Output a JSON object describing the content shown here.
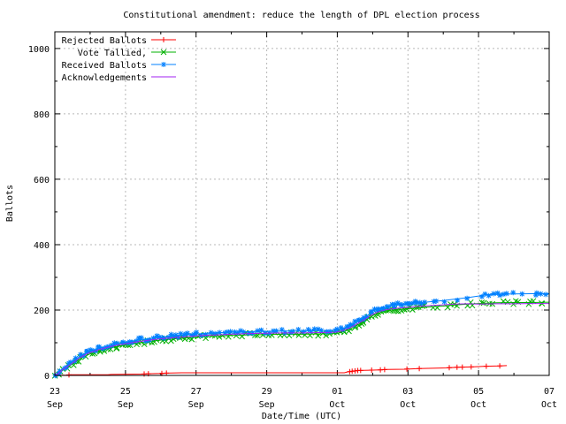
{
  "figure": {
    "background": "#ffffff",
    "border_color": "#000000",
    "grid_color": "#b8b8b8"
  },
  "chart_data": {
    "type": "line",
    "title": "Constitutional amendment: reduce the length of DPL election process",
    "xlabel": "Date/Time (UTC)",
    "ylabel": "Ballots",
    "grid": true,
    "legend_position": "top-left",
    "x_axis": {
      "unit": "days since 23 Sep 00:00 UTC",
      "min": 0,
      "max": 14,
      "major_tick_days": [
        0,
        2,
        4,
        6,
        8,
        10,
        12,
        14
      ],
      "major_tick_labels": [
        [
          "23",
          "Sep"
        ],
        [
          "25",
          "Sep"
        ],
        [
          "27",
          "Sep"
        ],
        [
          "29",
          "Sep"
        ],
        [
          "01",
          "Oct"
        ],
        [
          "03",
          "Oct"
        ],
        [
          "05",
          "Oct"
        ],
        [
          "07",
          "Oct"
        ]
      ],
      "minor_tick_days": [
        1,
        3,
        5,
        7,
        9,
        11,
        13
      ]
    },
    "y_axis": {
      "min": 0,
      "max": 1051,
      "major_ticks": [
        0,
        200,
        400,
        600,
        800,
        1000
      ],
      "minor_ticks": [
        100,
        300,
        500,
        700,
        900
      ]
    },
    "series": [
      {
        "name": "Rejected Ballots",
        "color": "#ff0000",
        "marker": "plus",
        "marker_style": "explicit",
        "points": [
          [
            0,
            0
          ],
          [
            0.35,
            1
          ],
          [
            0.45,
            2
          ],
          [
            1.5,
            2
          ],
          [
            1.6,
            3
          ],
          [
            2.5,
            4
          ],
          [
            2.65,
            5
          ],
          [
            3.0,
            6
          ],
          [
            3.15,
            7
          ],
          [
            3.6,
            8
          ],
          [
            8.2,
            8
          ],
          [
            8.3,
            11
          ],
          [
            8.45,
            13
          ],
          [
            8.6,
            15
          ],
          [
            8.9,
            16
          ],
          [
            9.2,
            17
          ],
          [
            9.4,
            18
          ],
          [
            9.9,
            19
          ],
          [
            10.3,
            21
          ],
          [
            11.1,
            23
          ],
          [
            11.4,
            25
          ],
          [
            11.8,
            26
          ],
          [
            12.2,
            28
          ],
          [
            12.6,
            29
          ],
          [
            12.8,
            30
          ]
        ],
        "marker_days": [
          0.4,
          2.53,
          2.65,
          3.03,
          3.16,
          8.35,
          8.42,
          8.5,
          8.58,
          8.66,
          8.97,
          9.22,
          9.34,
          9.97,
          10.32,
          11.17,
          11.39,
          11.54,
          11.79,
          12.22,
          12.6
        ]
      },
      {
        "name": "Vote Tallied,",
        "color": "#00b000",
        "marker": "cross",
        "marker_style": "dense",
        "points": [
          [
            0,
            0
          ],
          [
            0.1,
            5
          ],
          [
            0.2,
            14
          ],
          [
            0.35,
            24
          ],
          [
            0.5,
            35
          ],
          [
            0.65,
            46
          ],
          [
            0.8,
            56
          ],
          [
            1.0,
            66
          ],
          [
            1.25,
            75
          ],
          [
            1.5,
            82
          ],
          [
            1.75,
            88
          ],
          [
            2.0,
            93
          ],
          [
            2.35,
            99
          ],
          [
            2.7,
            104
          ],
          [
            3.0,
            108
          ],
          [
            3.4,
            112
          ],
          [
            3.8,
            115
          ],
          [
            4.2,
            118
          ],
          [
            4.6,
            120
          ],
          [
            5.0,
            122
          ],
          [
            5.5,
            124
          ],
          [
            6.0,
            125
          ],
          [
            6.5,
            126
          ],
          [
            7.0,
            126
          ],
          [
            7.5,
            127
          ],
          [
            7.95,
            128
          ],
          [
            8.1,
            131
          ],
          [
            8.25,
            137
          ],
          [
            8.4,
            144
          ],
          [
            8.6,
            156
          ],
          [
            8.8,
            169
          ],
          [
            9.0,
            183
          ],
          [
            9.15,
            190
          ],
          [
            9.3,
            195
          ],
          [
            9.5,
            199
          ],
          [
            9.75,
            202
          ],
          [
            10.0,
            204
          ],
          [
            10.3,
            207
          ],
          [
            10.7,
            210
          ],
          [
            11.0,
            212
          ],
          [
            11.3,
            215
          ],
          [
            11.7,
            218
          ],
          [
            12.0,
            220
          ],
          [
            12.5,
            222
          ],
          [
            13.0,
            223
          ],
          [
            13.5,
            223
          ],
          [
            14.0,
            224
          ]
        ]
      },
      {
        "name": "Received Ballots",
        "color": "#0080ff",
        "marker": "asterisk",
        "marker_style": "dense",
        "points": [
          [
            0,
            0
          ],
          [
            0.1,
            8
          ],
          [
            0.2,
            19
          ],
          [
            0.35,
            30
          ],
          [
            0.5,
            42
          ],
          [
            0.65,
            54
          ],
          [
            0.8,
            64
          ],
          [
            1.0,
            74
          ],
          [
            1.25,
            83
          ],
          [
            1.5,
            90
          ],
          [
            1.75,
            96
          ],
          [
            2.0,
            102
          ],
          [
            2.35,
            108
          ],
          [
            2.7,
            113
          ],
          [
            3.0,
            117
          ],
          [
            3.4,
            121
          ],
          [
            3.8,
            125
          ],
          [
            4.2,
            128
          ],
          [
            4.6,
            130
          ],
          [
            5.0,
            132
          ],
          [
            5.5,
            134
          ],
          [
            6.0,
            135
          ],
          [
            6.5,
            136
          ],
          [
            7.0,
            136
          ],
          [
            7.5,
            137
          ],
          [
            7.95,
            138
          ],
          [
            8.1,
            141
          ],
          [
            8.25,
            147
          ],
          [
            8.4,
            154
          ],
          [
            8.6,
            166
          ],
          [
            8.8,
            178
          ],
          [
            9.0,
            197
          ],
          [
            9.15,
            204
          ],
          [
            9.3,
            209
          ],
          [
            9.5,
            213
          ],
          [
            9.75,
            216
          ],
          [
            10.0,
            219
          ],
          [
            10.3,
            222
          ],
          [
            10.7,
            226
          ],
          [
            11.0,
            229
          ],
          [
            11.3,
            233
          ],
          [
            11.7,
            238
          ],
          [
            12.0,
            243
          ],
          [
            12.2,
            247
          ],
          [
            12.5,
            248
          ],
          [
            13.0,
            249
          ],
          [
            13.5,
            250
          ],
          [
            14.0,
            250
          ]
        ]
      },
      {
        "name": "Acknowledgements",
        "color": "#a020f0",
        "marker": "none",
        "marker_style": "none",
        "points": [
          [
            0,
            0
          ],
          [
            0.1,
            6
          ],
          [
            0.2,
            16
          ],
          [
            0.35,
            27
          ],
          [
            0.5,
            38
          ],
          [
            0.65,
            50
          ],
          [
            0.8,
            60
          ],
          [
            1.0,
            70
          ],
          [
            1.25,
            79
          ],
          [
            1.5,
            86
          ],
          [
            1.75,
            92
          ],
          [
            2.0,
            97
          ],
          [
            2.35,
            103
          ],
          [
            2.7,
            108
          ],
          [
            3.0,
            112
          ],
          [
            3.4,
            116
          ],
          [
            3.8,
            119
          ],
          [
            4.2,
            122
          ],
          [
            4.6,
            124
          ],
          [
            5.0,
            126
          ],
          [
            5.5,
            128
          ],
          [
            6.0,
            129
          ],
          [
            6.5,
            130
          ],
          [
            7.0,
            130
          ],
          [
            7.5,
            131
          ],
          [
            7.95,
            132
          ],
          [
            8.1,
            135
          ],
          [
            8.25,
            141
          ],
          [
            8.4,
            148
          ],
          [
            8.6,
            160
          ],
          [
            8.8,
            173
          ],
          [
            9.0,
            187
          ],
          [
            9.15,
            194
          ],
          [
            9.3,
            199
          ],
          [
            9.5,
            203
          ],
          [
            9.75,
            206
          ],
          [
            10.0,
            208
          ],
          [
            10.3,
            211
          ],
          [
            10.7,
            214
          ],
          [
            11.0,
            216
          ],
          [
            11.3,
            218
          ],
          [
            11.7,
            219
          ],
          [
            12.0,
            218
          ],
          [
            12.5,
            219
          ],
          [
            13.0,
            219
          ],
          [
            13.5,
            220
          ],
          [
            14.0,
            220
          ]
        ]
      }
    ]
  }
}
